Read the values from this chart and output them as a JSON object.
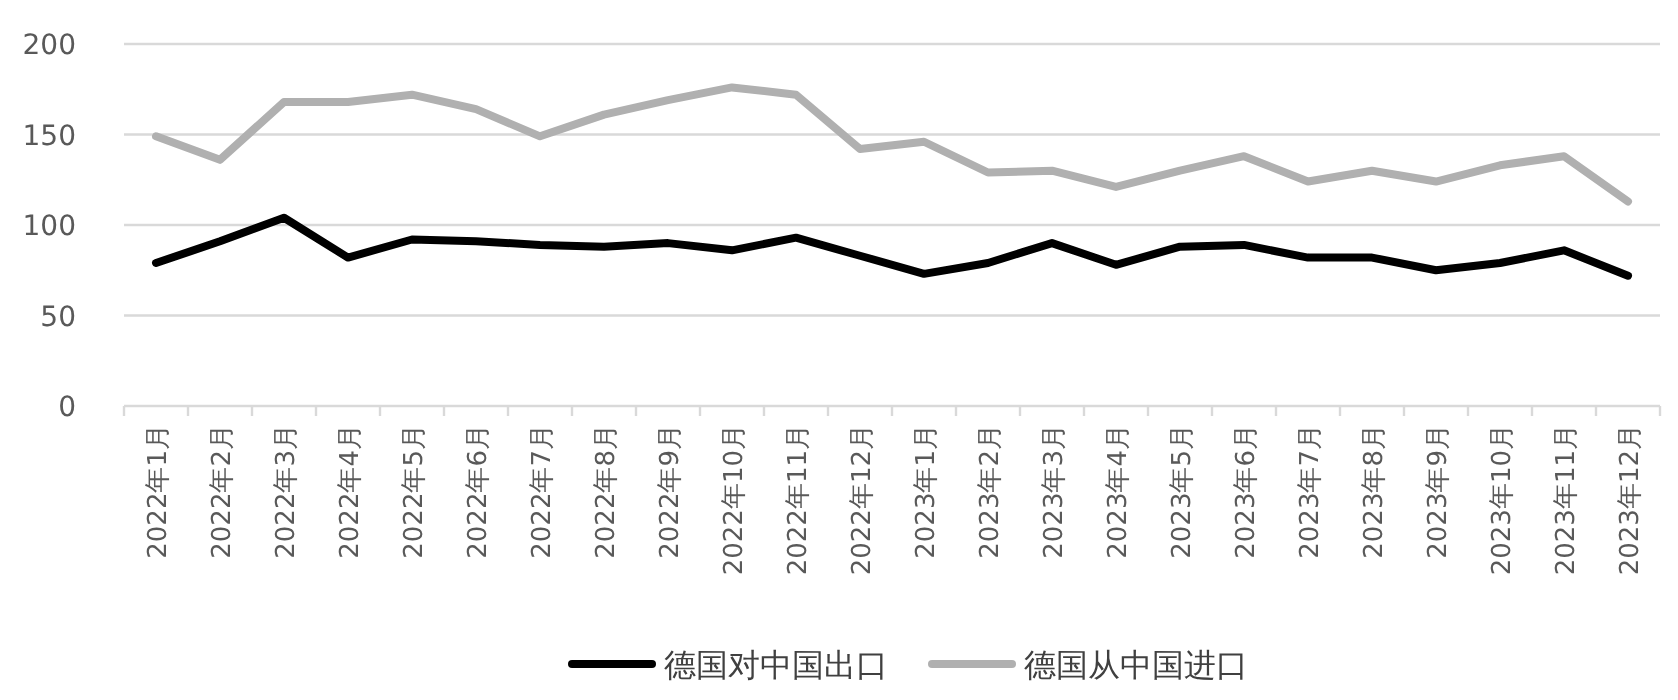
{
  "chart_data": {
    "type": "line",
    "categories": [
      "2022年1月",
      "2022年2月",
      "2022年3月",
      "2022年4月",
      "2022年5月",
      "2022年6月",
      "2022年7月",
      "2022年8月",
      "2022年9月",
      "2022年10月",
      "2022年11月",
      "2022年12月",
      "2023年1月",
      "2023年2月",
      "2023年3月",
      "2023年4月",
      "2023年5月",
      "2023年6月",
      "2023年7月",
      "2023年8月",
      "2023年9月",
      "2023年10月",
      "2023年11月",
      "2023年12月"
    ],
    "series": [
      {
        "name": "德国对中国出口",
        "color": "#000000",
        "values": [
          79,
          91,
          104,
          82,
          92,
          91,
          89,
          88,
          90,
          86,
          93,
          83,
          73,
          79,
          90,
          78,
          88,
          89,
          82,
          82,
          75,
          79,
          86,
          72
        ]
      },
      {
        "name": "德国从中国进口",
        "color": "#b0b0b0",
        "values": [
          149,
          136,
          168,
          168,
          172,
          164,
          149,
          161,
          169,
          176,
          172,
          142,
          146,
          129,
          130,
          121,
          130,
          138,
          124,
          130,
          124,
          133,
          138,
          113
        ]
      }
    ],
    "ylim": [
      0,
      200
    ],
    "yticks": [
      0,
      50,
      100,
      150,
      200
    ],
    "grid": "y",
    "legend": "bottom"
  }
}
